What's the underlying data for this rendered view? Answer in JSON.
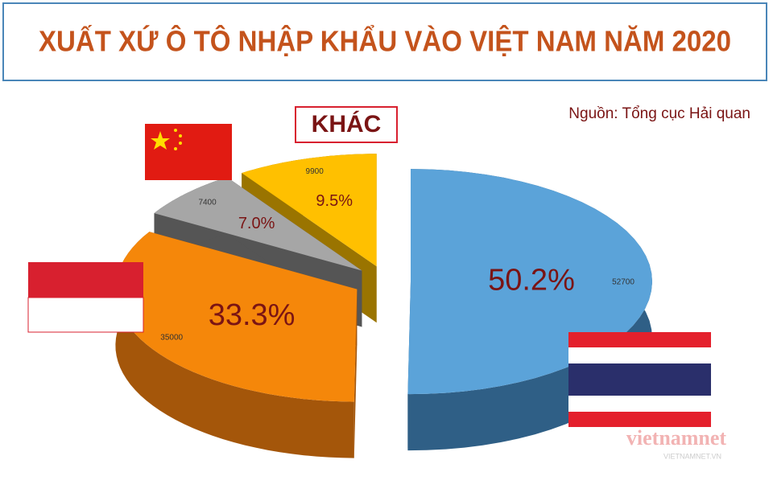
{
  "title": "XUẤT XỨ Ô TÔ NHẬP KHẨU VÀO VIỆT NAM NĂM 2020",
  "source": "Nguồn: Tổng cục Hải quan",
  "watermark": "vietnamnet",
  "watermark_sub": "VIETNAMNET.VN",
  "chart_data": {
    "type": "pie",
    "categories": [
      null,
      null,
      null,
      "KHÁC"
    ],
    "values": [
      52700,
      35000,
      7400,
      9900
    ],
    "percent_labels": [
      "50.2%",
      "33.3%",
      "7.0%",
      "9.5%"
    ],
    "colors": [
      "#5ba3d9",
      "#f5870a",
      "#a6a6a6",
      "#ffc000"
    ],
    "side_colors": [
      "#2f5f86",
      "#a4560a",
      "#555555",
      "#9a7400"
    ]
  }
}
